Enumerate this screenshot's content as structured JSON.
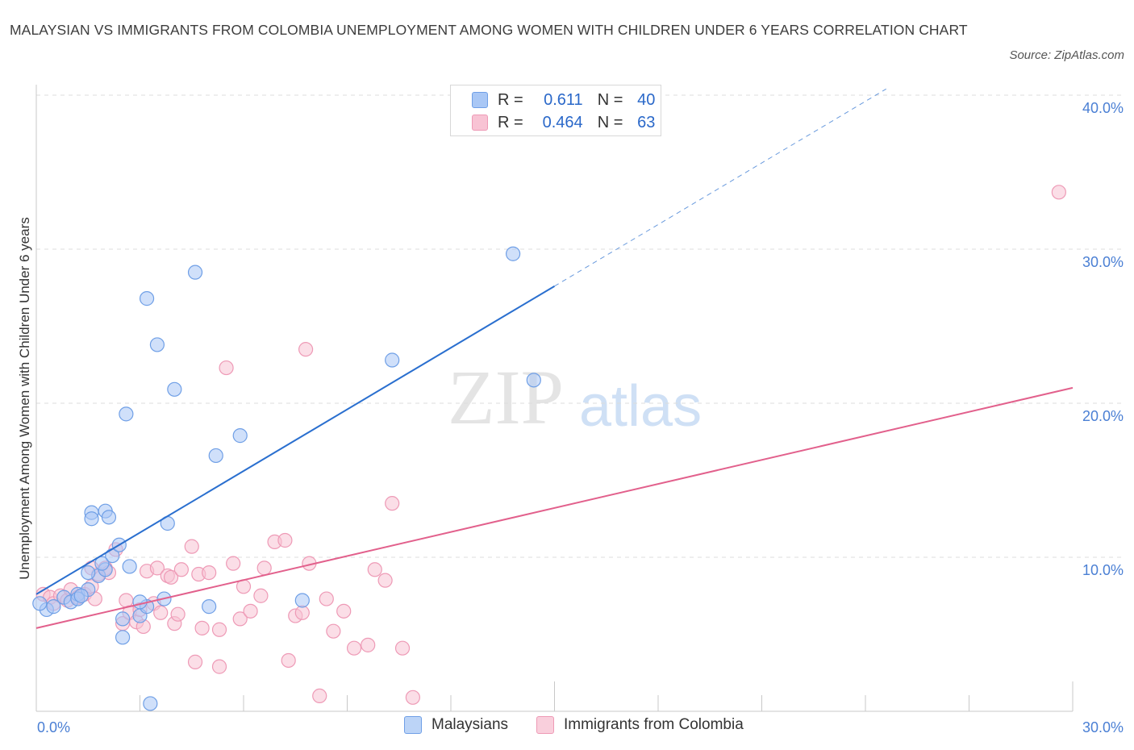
{
  "title": "MALAYSIAN VS IMMIGRANTS FROM COLOMBIA UNEMPLOYMENT AMONG WOMEN WITH CHILDREN UNDER 6 YEARS CORRELATION CHART",
  "source": "Source: ZipAtlas.com",
  "watermark": {
    "zip": "ZIP",
    "atlas": "atlas"
  },
  "legend": {
    "r_label": "R =",
    "n_label": "N =",
    "rows": [
      {
        "r": "0.611",
        "n": "40",
        "color": "#a9c7f5",
        "stroke": "#6f9fe6"
      },
      {
        "r": "0.464",
        "n": "63",
        "color": "#f8c3d4",
        "stroke": "#ee9ab6"
      }
    ]
  },
  "bottom_legend": [
    {
      "label": "Malaysians",
      "color": "#bcd4f7",
      "stroke": "#6f9fe6"
    },
    {
      "label": "Immigrants from Colombia",
      "color": "#f9cfdc",
      "stroke": "#ee9ab6"
    }
  ],
  "chart_data": {
    "type": "scatter",
    "xlabel": "",
    "ylabel": "Unemployment Among Women with Children Under 6 years",
    "xlim": [
      0,
      30
    ],
    "ylim": [
      0,
      40
    ],
    "x_tick_labels": [
      "0.0%",
      "30.0%"
    ],
    "y_ticks": [
      10,
      20,
      30,
      40
    ],
    "y_tick_labels": [
      "10.0%",
      "20.0%",
      "30.0%",
      "40.0%"
    ],
    "series": [
      {
        "name": "Malaysians",
        "color": "#a9c7f5",
        "stroke": "#6f9fe6",
        "trend_color": "#2a6fcf",
        "trend": {
          "x0": 0,
          "y0": 7.6,
          "x1": 15,
          "y1": 27.6,
          "dash_to_x": 24.6
        },
        "points": [
          [
            0.3,
            6.6
          ],
          [
            0.1,
            7.0
          ],
          [
            0.5,
            6.8
          ],
          [
            0.8,
            7.4
          ],
          [
            1.0,
            7.1
          ],
          [
            1.2,
            7.6
          ],
          [
            1.5,
            7.9
          ],
          [
            1.2,
            7.3
          ],
          [
            1.3,
            7.5
          ],
          [
            1.8,
            8.8
          ],
          [
            2.0,
            9.2
          ],
          [
            1.9,
            9.6
          ],
          [
            2.2,
            10.1
          ],
          [
            2.4,
            10.8
          ],
          [
            1.5,
            9.0
          ],
          [
            1.6,
            12.9
          ],
          [
            1.6,
            12.5
          ],
          [
            2.0,
            13.0
          ],
          [
            2.1,
            12.6
          ],
          [
            2.5,
            6.0
          ],
          [
            2.5,
            4.8
          ],
          [
            3.0,
            6.2
          ],
          [
            3.2,
            6.8
          ],
          [
            3.0,
            7.1
          ],
          [
            3.7,
            7.3
          ],
          [
            2.7,
            9.4
          ],
          [
            3.8,
            12.2
          ],
          [
            2.6,
            19.3
          ],
          [
            3.2,
            26.8
          ],
          [
            3.5,
            23.8
          ],
          [
            4.0,
            20.9
          ],
          [
            4.6,
            28.5
          ],
          [
            5.2,
            16.6
          ],
          [
            5.0,
            6.8
          ],
          [
            5.9,
            17.9
          ],
          [
            7.7,
            7.2
          ],
          [
            10.3,
            22.8
          ],
          [
            13.8,
            29.7
          ],
          [
            14.4,
            21.5
          ],
          [
            3.3,
            0.5
          ]
        ]
      },
      {
        "name": "Immigrants from Colombia",
        "color": "#f8c3d4",
        "stroke": "#ee9ab6",
        "trend_color": "#e2608c",
        "trend": {
          "x0": 0,
          "y0": 5.4,
          "x1": 30,
          "y1": 21.0
        },
        "points": [
          [
            0.2,
            7.6
          ],
          [
            0.4,
            7.4
          ],
          [
            0.5,
            7.0
          ],
          [
            0.7,
            7.5
          ],
          [
            0.9,
            7.2
          ],
          [
            1.0,
            7.9
          ],
          [
            1.2,
            7.4
          ],
          [
            1.4,
            7.6
          ],
          [
            1.6,
            8.1
          ],
          [
            1.7,
            7.3
          ],
          [
            1.8,
            8.9
          ],
          [
            2.0,
            9.3
          ],
          [
            2.1,
            9.0
          ],
          [
            2.3,
            10.5
          ],
          [
            2.5,
            5.7
          ],
          [
            2.6,
            7.2
          ],
          [
            2.7,
            6.4
          ],
          [
            2.9,
            5.8
          ],
          [
            3.0,
            6.6
          ],
          [
            3.1,
            5.5
          ],
          [
            3.2,
            9.1
          ],
          [
            3.4,
            7.0
          ],
          [
            3.5,
            9.3
          ],
          [
            3.6,
            6.4
          ],
          [
            3.8,
            8.8
          ],
          [
            3.9,
            8.7
          ],
          [
            4.0,
            5.7
          ],
          [
            4.1,
            6.3
          ],
          [
            4.2,
            9.2
          ],
          [
            4.5,
            10.7
          ],
          [
            4.7,
            8.9
          ],
          [
            4.8,
            5.4
          ],
          [
            5.0,
            9.0
          ],
          [
            5.3,
            5.3
          ],
          [
            5.5,
            22.3
          ],
          [
            5.7,
            9.6
          ],
          [
            5.9,
            6.0
          ],
          [
            6.0,
            8.1
          ],
          [
            6.2,
            6.5
          ],
          [
            6.5,
            7.5
          ],
          [
            6.6,
            9.3
          ],
          [
            6.9,
            11.0
          ],
          [
            7.2,
            11.1
          ],
          [
            7.5,
            6.2
          ],
          [
            7.7,
            6.4
          ],
          [
            7.8,
            23.5
          ],
          [
            7.9,
            9.6
          ],
          [
            8.2,
            1.0
          ],
          [
            8.4,
            7.3
          ],
          [
            8.6,
            5.2
          ],
          [
            8.9,
            6.5
          ],
          [
            9.2,
            4.1
          ],
          [
            9.6,
            4.3
          ],
          [
            9.8,
            9.2
          ],
          [
            10.1,
            8.5
          ],
          [
            10.3,
            13.5
          ],
          [
            10.6,
            4.1
          ],
          [
            10.9,
            0.9
          ],
          [
            4.6,
            3.2
          ],
          [
            5.3,
            2.9
          ],
          [
            7.3,
            3.3
          ],
          [
            1.6,
            9.3
          ],
          [
            29.6,
            33.7
          ]
        ]
      }
    ]
  }
}
